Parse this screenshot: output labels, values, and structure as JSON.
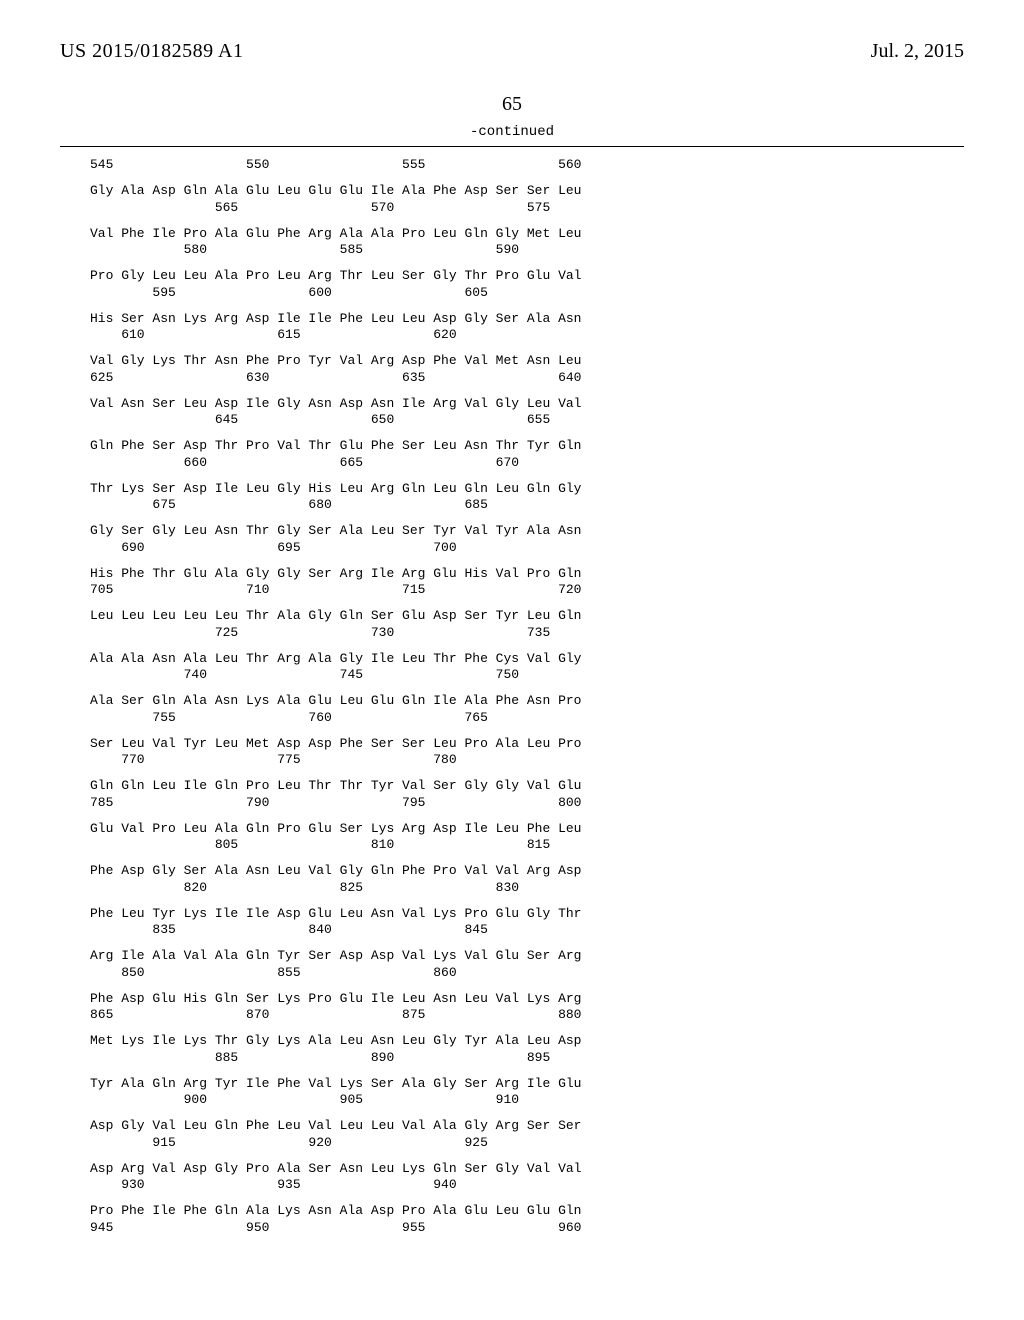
{
  "header": {
    "pubnum": "US 2015/0182589 A1",
    "pubdate": "Jul. 2, 2015"
  },
  "pagenum": "65",
  "continued": "-continued",
  "font": {
    "seq_family": "Courier New",
    "seq_size_pt": 13,
    "header_size_pt": 20
  },
  "colors": {
    "text": "#000000",
    "background": "#ffffff",
    "rule": "#000000"
  },
  "sequence_blocks": [
    {
      "aa": "545                 550                 555                 560",
      "nm": ""
    },
    {
      "aa": "Gly Ala Asp Gln Ala Glu Leu Glu Glu Ile Ala Phe Asp Ser Ser Leu",
      "nm": "                565                 570                 575"
    },
    {
      "aa": "Val Phe Ile Pro Ala Glu Phe Arg Ala Ala Pro Leu Gln Gly Met Leu",
      "nm": "            580                 585                 590"
    },
    {
      "aa": "Pro Gly Leu Leu Ala Pro Leu Arg Thr Leu Ser Gly Thr Pro Glu Val",
      "nm": "        595                 600                 605"
    },
    {
      "aa": "His Ser Asn Lys Arg Asp Ile Ile Phe Leu Leu Asp Gly Ser Ala Asn",
      "nm": "    610                 615                 620"
    },
    {
      "aa": "Val Gly Lys Thr Asn Phe Pro Tyr Val Arg Asp Phe Val Met Asn Leu",
      "nm": "625                 630                 635                 640"
    },
    {
      "aa": "Val Asn Ser Leu Asp Ile Gly Asn Asp Asn Ile Arg Val Gly Leu Val",
      "nm": "                645                 650                 655"
    },
    {
      "aa": "Gln Phe Ser Asp Thr Pro Val Thr Glu Phe Ser Leu Asn Thr Tyr Gln",
      "nm": "            660                 665                 670"
    },
    {
      "aa": "Thr Lys Ser Asp Ile Leu Gly His Leu Arg Gln Leu Gln Leu Gln Gly",
      "nm": "        675                 680                 685"
    },
    {
      "aa": "Gly Ser Gly Leu Asn Thr Gly Ser Ala Leu Ser Tyr Val Tyr Ala Asn",
      "nm": "    690                 695                 700"
    },
    {
      "aa": "His Phe Thr Glu Ala Gly Gly Ser Arg Ile Arg Glu His Val Pro Gln",
      "nm": "705                 710                 715                 720"
    },
    {
      "aa": "Leu Leu Leu Leu Leu Thr Ala Gly Gln Ser Glu Asp Ser Tyr Leu Gln",
      "nm": "                725                 730                 735"
    },
    {
      "aa": "Ala Ala Asn Ala Leu Thr Arg Ala Gly Ile Leu Thr Phe Cys Val Gly",
      "nm": "            740                 745                 750"
    },
    {
      "aa": "Ala Ser Gln Ala Asn Lys Ala Glu Leu Glu Gln Ile Ala Phe Asn Pro",
      "nm": "        755                 760                 765"
    },
    {
      "aa": "Ser Leu Val Tyr Leu Met Asp Asp Phe Ser Ser Leu Pro Ala Leu Pro",
      "nm": "    770                 775                 780"
    },
    {
      "aa": "Gln Gln Leu Ile Gln Pro Leu Thr Thr Tyr Val Ser Gly Gly Val Glu",
      "nm": "785                 790                 795                 800"
    },
    {
      "aa": "Glu Val Pro Leu Ala Gln Pro Glu Ser Lys Arg Asp Ile Leu Phe Leu",
      "nm": "                805                 810                 815"
    },
    {
      "aa": "Phe Asp Gly Ser Ala Asn Leu Val Gly Gln Phe Pro Val Val Arg Asp",
      "nm": "            820                 825                 830"
    },
    {
      "aa": "Phe Leu Tyr Lys Ile Ile Asp Glu Leu Asn Val Lys Pro Glu Gly Thr",
      "nm": "        835                 840                 845"
    },
    {
      "aa": "Arg Ile Ala Val Ala Gln Tyr Ser Asp Asp Val Lys Val Glu Ser Arg",
      "nm": "    850                 855                 860"
    },
    {
      "aa": "Phe Asp Glu His Gln Ser Lys Pro Glu Ile Leu Asn Leu Val Lys Arg",
      "nm": "865                 870                 875                 880"
    },
    {
      "aa": "Met Lys Ile Lys Thr Gly Lys Ala Leu Asn Leu Gly Tyr Ala Leu Asp",
      "nm": "                885                 890                 895"
    },
    {
      "aa": "Tyr Ala Gln Arg Tyr Ile Phe Val Lys Ser Ala Gly Ser Arg Ile Glu",
      "nm": "            900                 905                 910"
    },
    {
      "aa": "Asp Gly Val Leu Gln Phe Leu Val Leu Leu Val Ala Gly Arg Ser Ser",
      "nm": "        915                 920                 925"
    },
    {
      "aa": "Asp Arg Val Asp Gly Pro Ala Ser Asn Leu Lys Gln Ser Gly Val Val",
      "nm": "    930                 935                 940"
    },
    {
      "aa": "Pro Phe Ile Phe Gln Ala Lys Asn Ala Asp Pro Ala Glu Leu Glu Gln",
      "nm": "945                 950                 955                 960"
    }
  ]
}
